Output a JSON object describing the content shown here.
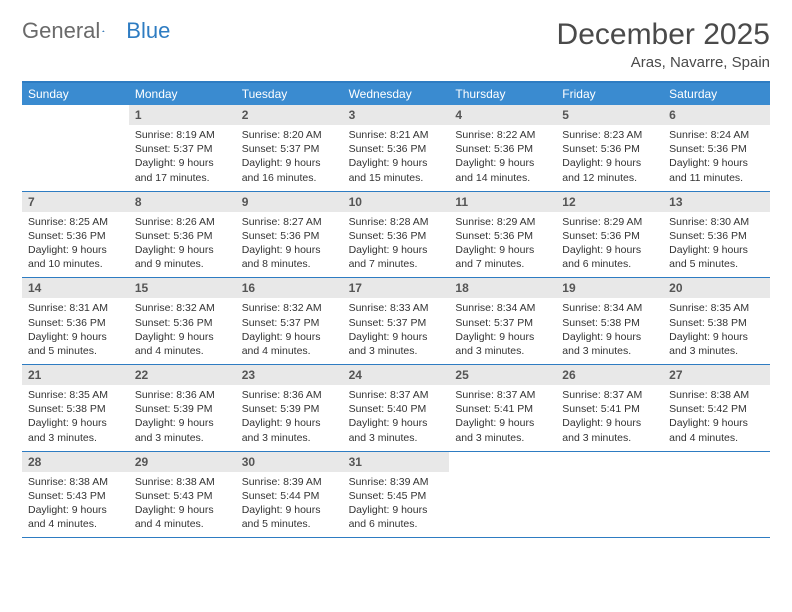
{
  "brand": {
    "part1": "General",
    "part2": "Blue"
  },
  "title": "December 2025",
  "location": "Aras, Navarre, Spain",
  "colors": {
    "header_bg": "#3a8bd0",
    "border": "#2e7cc2",
    "daynum_bg": "#e8e8e8",
    "text": "#333333",
    "title_text": "#4a4a4a"
  },
  "weekdays": [
    "Sunday",
    "Monday",
    "Tuesday",
    "Wednesday",
    "Thursday",
    "Friday",
    "Saturday"
  ],
  "weeks": [
    [
      {
        "n": "",
        "sr": "",
        "ss": "",
        "dl": ""
      },
      {
        "n": "1",
        "sr": "Sunrise: 8:19 AM",
        "ss": "Sunset: 5:37 PM",
        "dl": "Daylight: 9 hours and 17 minutes."
      },
      {
        "n": "2",
        "sr": "Sunrise: 8:20 AM",
        "ss": "Sunset: 5:37 PM",
        "dl": "Daylight: 9 hours and 16 minutes."
      },
      {
        "n": "3",
        "sr": "Sunrise: 8:21 AM",
        "ss": "Sunset: 5:36 PM",
        "dl": "Daylight: 9 hours and 15 minutes."
      },
      {
        "n": "4",
        "sr": "Sunrise: 8:22 AM",
        "ss": "Sunset: 5:36 PM",
        "dl": "Daylight: 9 hours and 14 minutes."
      },
      {
        "n": "5",
        "sr": "Sunrise: 8:23 AM",
        "ss": "Sunset: 5:36 PM",
        "dl": "Daylight: 9 hours and 12 minutes."
      },
      {
        "n": "6",
        "sr": "Sunrise: 8:24 AM",
        "ss": "Sunset: 5:36 PM",
        "dl": "Daylight: 9 hours and 11 minutes."
      }
    ],
    [
      {
        "n": "7",
        "sr": "Sunrise: 8:25 AM",
        "ss": "Sunset: 5:36 PM",
        "dl": "Daylight: 9 hours and 10 minutes."
      },
      {
        "n": "8",
        "sr": "Sunrise: 8:26 AM",
        "ss": "Sunset: 5:36 PM",
        "dl": "Daylight: 9 hours and 9 minutes."
      },
      {
        "n": "9",
        "sr": "Sunrise: 8:27 AM",
        "ss": "Sunset: 5:36 PM",
        "dl": "Daylight: 9 hours and 8 minutes."
      },
      {
        "n": "10",
        "sr": "Sunrise: 8:28 AM",
        "ss": "Sunset: 5:36 PM",
        "dl": "Daylight: 9 hours and 7 minutes."
      },
      {
        "n": "11",
        "sr": "Sunrise: 8:29 AM",
        "ss": "Sunset: 5:36 PM",
        "dl": "Daylight: 9 hours and 7 minutes."
      },
      {
        "n": "12",
        "sr": "Sunrise: 8:29 AM",
        "ss": "Sunset: 5:36 PM",
        "dl": "Daylight: 9 hours and 6 minutes."
      },
      {
        "n": "13",
        "sr": "Sunrise: 8:30 AM",
        "ss": "Sunset: 5:36 PM",
        "dl": "Daylight: 9 hours and 5 minutes."
      }
    ],
    [
      {
        "n": "14",
        "sr": "Sunrise: 8:31 AM",
        "ss": "Sunset: 5:36 PM",
        "dl": "Daylight: 9 hours and 5 minutes."
      },
      {
        "n": "15",
        "sr": "Sunrise: 8:32 AM",
        "ss": "Sunset: 5:36 PM",
        "dl": "Daylight: 9 hours and 4 minutes."
      },
      {
        "n": "16",
        "sr": "Sunrise: 8:32 AM",
        "ss": "Sunset: 5:37 PM",
        "dl": "Daylight: 9 hours and 4 minutes."
      },
      {
        "n": "17",
        "sr": "Sunrise: 8:33 AM",
        "ss": "Sunset: 5:37 PM",
        "dl": "Daylight: 9 hours and 3 minutes."
      },
      {
        "n": "18",
        "sr": "Sunrise: 8:34 AM",
        "ss": "Sunset: 5:37 PM",
        "dl": "Daylight: 9 hours and 3 minutes."
      },
      {
        "n": "19",
        "sr": "Sunrise: 8:34 AM",
        "ss": "Sunset: 5:38 PM",
        "dl": "Daylight: 9 hours and 3 minutes."
      },
      {
        "n": "20",
        "sr": "Sunrise: 8:35 AM",
        "ss": "Sunset: 5:38 PM",
        "dl": "Daylight: 9 hours and 3 minutes."
      }
    ],
    [
      {
        "n": "21",
        "sr": "Sunrise: 8:35 AM",
        "ss": "Sunset: 5:38 PM",
        "dl": "Daylight: 9 hours and 3 minutes."
      },
      {
        "n": "22",
        "sr": "Sunrise: 8:36 AM",
        "ss": "Sunset: 5:39 PM",
        "dl": "Daylight: 9 hours and 3 minutes."
      },
      {
        "n": "23",
        "sr": "Sunrise: 8:36 AM",
        "ss": "Sunset: 5:39 PM",
        "dl": "Daylight: 9 hours and 3 minutes."
      },
      {
        "n": "24",
        "sr": "Sunrise: 8:37 AM",
        "ss": "Sunset: 5:40 PM",
        "dl": "Daylight: 9 hours and 3 minutes."
      },
      {
        "n": "25",
        "sr": "Sunrise: 8:37 AM",
        "ss": "Sunset: 5:41 PM",
        "dl": "Daylight: 9 hours and 3 minutes."
      },
      {
        "n": "26",
        "sr": "Sunrise: 8:37 AM",
        "ss": "Sunset: 5:41 PM",
        "dl": "Daylight: 9 hours and 3 minutes."
      },
      {
        "n": "27",
        "sr": "Sunrise: 8:38 AM",
        "ss": "Sunset: 5:42 PM",
        "dl": "Daylight: 9 hours and 4 minutes."
      }
    ],
    [
      {
        "n": "28",
        "sr": "Sunrise: 8:38 AM",
        "ss": "Sunset: 5:43 PM",
        "dl": "Daylight: 9 hours and 4 minutes."
      },
      {
        "n": "29",
        "sr": "Sunrise: 8:38 AM",
        "ss": "Sunset: 5:43 PM",
        "dl": "Daylight: 9 hours and 4 minutes."
      },
      {
        "n": "30",
        "sr": "Sunrise: 8:39 AM",
        "ss": "Sunset: 5:44 PM",
        "dl": "Daylight: 9 hours and 5 minutes."
      },
      {
        "n": "31",
        "sr": "Sunrise: 8:39 AM",
        "ss": "Sunset: 5:45 PM",
        "dl": "Daylight: 9 hours and 6 minutes."
      },
      {
        "n": "",
        "sr": "",
        "ss": "",
        "dl": ""
      },
      {
        "n": "",
        "sr": "",
        "ss": "",
        "dl": ""
      },
      {
        "n": "",
        "sr": "",
        "ss": "",
        "dl": ""
      }
    ]
  ]
}
